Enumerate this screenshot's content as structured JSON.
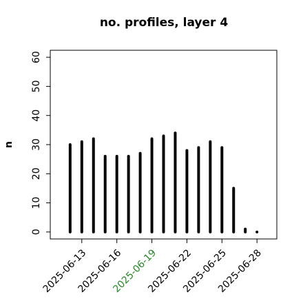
{
  "chart_data": {
    "type": "bar_h_lines",
    "title": "no. profiles, layer 4",
    "y_label": "n",
    "x": [
      "2025-06-12",
      "2025-06-13",
      "2025-06-14",
      "2025-06-15",
      "2025-06-16",
      "2025-06-17",
      "2025-06-18",
      "2025-06-19",
      "2025-06-20",
      "2025-06-21",
      "2025-06-22",
      "2025-06-23",
      "2025-06-24",
      "2025-06-25",
      "2025-06-26",
      "2025-06-27",
      "2025-06-28"
    ],
    "values": [
      30,
      31,
      32,
      26,
      26,
      26,
      27,
      32,
      33,
      34,
      28,
      29,
      31,
      29,
      15,
      1,
      0
    ],
    "color": "#000000",
    "xlim": [
      "2025-06-10T07:12",
      "2025-06-29T16:48"
    ],
    "xticks": [
      "2025-06-13",
      "2025-06-16",
      "2025-06-19",
      "2025-06-22",
      "2025-06-25",
      "2025-06-28"
    ],
    "highlight_tick": "2025-06-19",
    "highlight_color": "#228b22",
    "ylim": [
      -2.4,
      62.4
    ],
    "yticks": [
      0,
      10,
      20,
      30,
      40,
      50,
      60
    ]
  }
}
